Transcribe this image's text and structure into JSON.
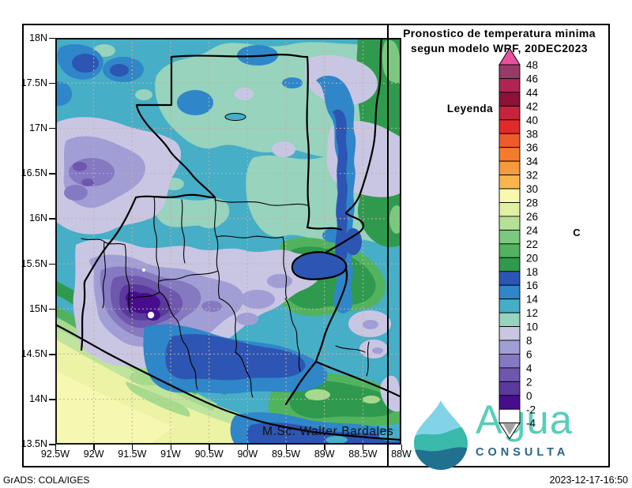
{
  "header": {
    "title_line1": "Pronostico de temperatura minima",
    "title_line2": "segun modelo WRF, 20DEC2023"
  },
  "legend": {
    "label": "Leyenda",
    "unit": "C",
    "tick_labels": [
      "48",
      "46",
      "44",
      "42",
      "40",
      "38",
      "36",
      "34",
      "32",
      "30",
      "28",
      "26",
      "24",
      "22",
      "20",
      "18",
      "16",
      "14",
      "12",
      "10",
      "8",
      "6",
      "4",
      "2",
      "0",
      "-2",
      "-4"
    ],
    "cell_colors": [
      "#973a68",
      "#b02455",
      "#8d1237",
      "#c6233c",
      "#e12a2a",
      "#ef5b2a",
      "#f47b2e",
      "#f69a40",
      "#fab54e",
      "#f8f8b0",
      "#e2f0a2",
      "#b5e095",
      "#7cc87e",
      "#52b35f",
      "#2f9a4d",
      "#2d55b3",
      "#2f86c9",
      "#46aec6",
      "#97d3bd",
      "#c9c6e3",
      "#a19ed5",
      "#857ac2",
      "#6e57ad",
      "#5a3a9c",
      "#470d8d",
      "#ffffff"
    ],
    "top_arrow_color": "#e9509e",
    "bottom_arrow_color": "#a2a2a2"
  },
  "map": {
    "signature": "M.Sc. Walter Bardales",
    "lat_labels": [
      "18N",
      "17.5N",
      "17N",
      "16.5N",
      "16N",
      "15.5N",
      "15N",
      "14.5N",
      "14N",
      "13.5N"
    ],
    "lon_labels": [
      "92.5W",
      "92W",
      "91.5W",
      "91W",
      "90.5W",
      "90W",
      "89.5W",
      "89W",
      "88.5W",
      "88W"
    ]
  },
  "footer": {
    "credit": "GrADS: COLA/IGES",
    "timestamp": "2023-12-17-16:50"
  },
  "logo": {
    "brand": "Agua",
    "brand_sub": "CONSULTA"
  }
}
